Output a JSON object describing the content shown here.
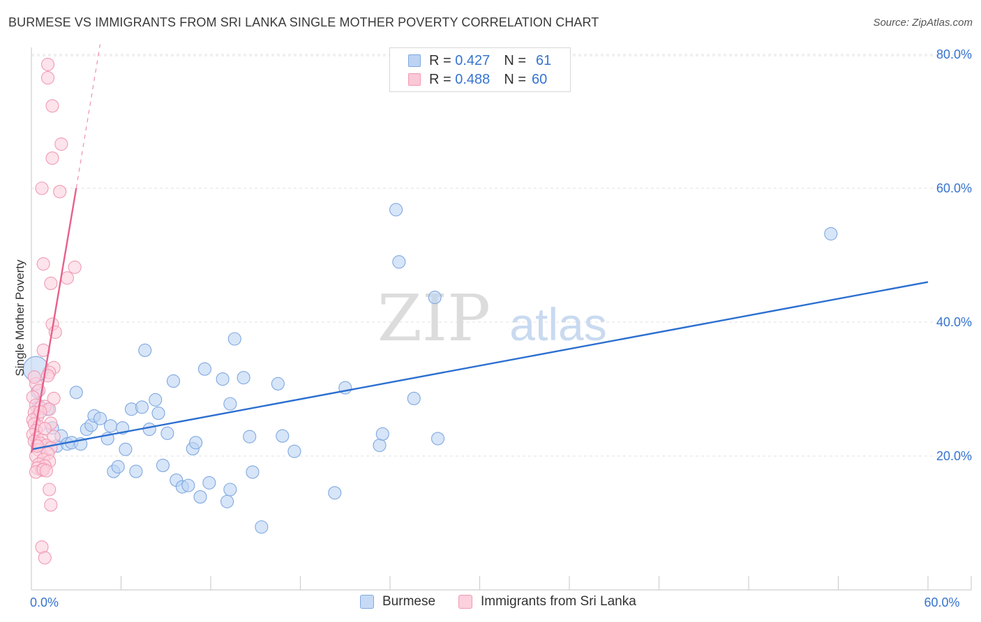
{
  "title": "BURMESE VS IMMIGRANTS FROM SRI LANKA SINGLE MOTHER POVERTY CORRELATION CHART",
  "source": "Source: ZipAtlas.com",
  "watermark": {
    "zip": "ZIP",
    "atlas": "atlas"
  },
  "legend": {
    "r_label": "R =",
    "n_label": "N =",
    "rows": [
      {
        "r": "0.427",
        "n": "61",
        "fill": "#bcd3f3",
        "stroke": "#7fa8e0"
      },
      {
        "r": "0.488",
        "n": "60",
        "fill": "#fbc8d6",
        "stroke": "#f09ab3"
      }
    ]
  },
  "bottom_legend": {
    "items": [
      {
        "label": "Burmese",
        "fill": "#c7daf5",
        "stroke": "#7fa8e0"
      },
      {
        "label": "Immigrants from Sri Lanka",
        "fill": "#fcd0dd",
        "stroke": "#f09ab3"
      }
    ]
  },
  "chart_data": {
    "type": "scatter",
    "xlabel": "",
    "ylabel": "Single Mother Poverty",
    "xlim": [
      0,
      60
    ],
    "ylim": [
      0,
      80
    ],
    "x_tick_labels": [
      {
        "value": 0,
        "label": "0.0%"
      },
      {
        "value": 60,
        "label": "60.0%"
      }
    ],
    "x_minor_ticks": [
      6,
      12,
      18,
      24,
      30,
      36,
      42,
      48,
      54,
      60
    ],
    "y_ticks": [
      {
        "value": 20,
        "label": "20.0%"
      },
      {
        "value": 40,
        "label": "40.0%"
      },
      {
        "value": 60,
        "label": "60.0%"
      },
      {
        "value": 80,
        "label": "80.0%"
      }
    ],
    "grid": true,
    "series": [
      {
        "name": "Burmese",
        "color": "#7fa8e0",
        "fill": "#bcd3f3",
        "trend_color": "#2b6fd0",
        "trend": {
          "x0": 0,
          "y0": 21.0,
          "x1": 60,
          "y1": 46.0
        },
        "points": [
          [
            0.3,
            33.0
          ],
          [
            0.5,
            27.5
          ],
          [
            1.1,
            27.0
          ],
          [
            1.4,
            24.2
          ],
          [
            1.7,
            21.5
          ],
          [
            2.0,
            23.0
          ],
          [
            2.4,
            21.8
          ],
          [
            2.7,
            22.0
          ],
          [
            3.0,
            29.5
          ],
          [
            3.3,
            21.8
          ],
          [
            3.7,
            24.0
          ],
          [
            4.0,
            24.6
          ],
          [
            4.2,
            26.0
          ],
          [
            4.6,
            25.6
          ],
          [
            5.1,
            22.6
          ],
          [
            5.3,
            24.5
          ],
          [
            5.5,
            17.7
          ],
          [
            5.8,
            18.4
          ],
          [
            6.1,
            24.2
          ],
          [
            6.3,
            21.0
          ],
          [
            6.7,
            27.0
          ],
          [
            7.0,
            17.7
          ],
          [
            7.4,
            27.3
          ],
          [
            7.6,
            35.8
          ],
          [
            7.9,
            24.0
          ],
          [
            8.3,
            28.4
          ],
          [
            8.5,
            26.4
          ],
          [
            8.8,
            18.6
          ],
          [
            9.1,
            23.4
          ],
          [
            9.5,
            31.2
          ],
          [
            9.7,
            16.4
          ],
          [
            10.1,
            15.4
          ],
          [
            10.5,
            15.6
          ],
          [
            10.8,
            21.1
          ],
          [
            11.0,
            22.0
          ],
          [
            11.3,
            13.9
          ],
          [
            11.6,
            33.0
          ],
          [
            11.9,
            16.0
          ],
          [
            12.8,
            31.5
          ],
          [
            13.3,
            27.8
          ],
          [
            13.6,
            37.5
          ],
          [
            13.1,
            13.2
          ],
          [
            13.3,
            15.0
          ],
          [
            14.2,
            31.7
          ],
          [
            14.6,
            22.9
          ],
          [
            14.8,
            17.6
          ],
          [
            15.4,
            9.4
          ],
          [
            16.5,
            30.8
          ],
          [
            16.8,
            23.0
          ],
          [
            17.6,
            20.7
          ],
          [
            20.3,
            14.5
          ],
          [
            21.0,
            30.2
          ],
          [
            23.3,
            21.6
          ],
          [
            23.5,
            23.3
          ],
          [
            24.4,
            56.8
          ],
          [
            24.6,
            49.0
          ],
          [
            25.6,
            28.6
          ],
          [
            27.0,
            43.7
          ],
          [
            27.2,
            22.6
          ],
          [
            53.5,
            53.2
          ],
          [
            0.4,
            29.6
          ]
        ]
      },
      {
        "name": "Immigrants from Sri Lanka",
        "color": "#f09ab3",
        "fill": "#fcd0dd",
        "trend_color": "#e8608a",
        "trend": {
          "x0": 0,
          "y0": 20.5,
          "x1": 3.0,
          "y1": 60.0
        },
        "trend_dashed_to": {
          "x": 4.6,
          "y": 81.5
        },
        "points": [
          [
            1.1,
            78.5
          ],
          [
            1.1,
            76.5
          ],
          [
            1.4,
            72.3
          ],
          [
            2.0,
            66.6
          ],
          [
            1.4,
            64.5
          ],
          [
            0.7,
            60.0
          ],
          [
            1.9,
            59.5
          ],
          [
            0.8,
            48.7
          ],
          [
            2.9,
            48.2
          ],
          [
            2.4,
            46.6
          ],
          [
            1.3,
            45.8
          ],
          [
            1.4,
            39.7
          ],
          [
            1.6,
            38.5
          ],
          [
            0.8,
            35.8
          ],
          [
            1.5,
            33.2
          ],
          [
            1.2,
            32.5
          ],
          [
            1.1,
            32.0
          ],
          [
            0.3,
            30.8
          ],
          [
            0.5,
            29.8
          ],
          [
            1.5,
            28.6
          ],
          [
            0.1,
            28.8
          ],
          [
            0.3,
            27.6
          ],
          [
            0.6,
            27.2
          ],
          [
            0.9,
            27.4
          ],
          [
            1.2,
            27.0
          ],
          [
            0.2,
            26.5
          ],
          [
            0.4,
            25.9
          ],
          [
            0.1,
            25.4
          ],
          [
            0.2,
            24.8
          ],
          [
            0.5,
            24.4
          ],
          [
            1.3,
            24.9
          ],
          [
            0.3,
            23.8
          ],
          [
            0.1,
            23.2
          ],
          [
            0.4,
            22.7
          ],
          [
            0.7,
            22.4
          ],
          [
            1.5,
            22.9
          ],
          [
            0.2,
            22.2
          ],
          [
            0.6,
            21.9
          ],
          [
            1.0,
            21.6
          ],
          [
            1.3,
            21.2
          ],
          [
            0.5,
            20.9
          ],
          [
            1.1,
            20.4
          ],
          [
            0.3,
            20.0
          ],
          [
            0.8,
            19.5
          ],
          [
            1.2,
            19.2
          ],
          [
            0.5,
            18.8
          ],
          [
            0.9,
            18.5
          ],
          [
            0.4,
            18.2
          ],
          [
            0.7,
            17.9
          ],
          [
            0.3,
            17.6
          ],
          [
            0.8,
            18.0
          ],
          [
            1.2,
            15.0
          ],
          [
            1.3,
            12.7
          ],
          [
            0.7,
            6.4
          ],
          [
            0.9,
            4.8
          ],
          [
            0.2,
            31.8
          ],
          [
            0.6,
            26.6
          ],
          [
            0.9,
            24.1
          ],
          [
            0.4,
            21.5
          ],
          [
            1.0,
            17.8
          ]
        ]
      }
    ]
  }
}
